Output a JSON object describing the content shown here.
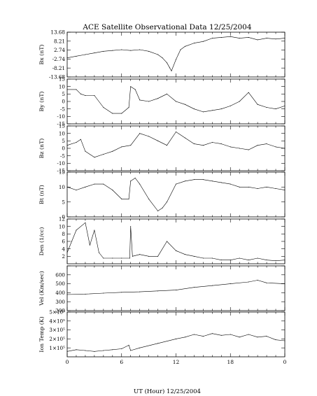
{
  "chart_data": {
    "type": "line",
    "title": "ACE Satellite Observational Data   12/25/2004",
    "xlabel": "UT (Hour)   12/25/2004",
    "x_tick_labels": [
      "0",
      "6",
      "12",
      "18",
      "0"
    ],
    "xlim": [
      0,
      24
    ],
    "panels": [
      {
        "ylabel": "Bx (nT)",
        "ylim": [
          -13.68,
          13.68
        ],
        "y_ticks": [
          -13.68,
          -8.21,
          -2.74,
          2.74,
          8.21,
          13.68
        ],
        "y_tick_labels": [
          "-13.68",
          "-8.21",
          "-2.74",
          "2.74",
          "8.21",
          "13.68"
        ],
        "series": [
          {
            "x": [
              0,
              1,
              2,
              3,
              4,
              5,
              6,
              7,
              8,
              9,
              10,
              10.5,
              11,
              11.3,
              11.5,
              12,
              12.5,
              13,
              14,
              15,
              16,
              17,
              18,
              19,
              20,
              21,
              22,
              23,
              24
            ],
            "values": [
              -2,
              -1,
              0,
              1,
              2,
              2.5,
              3,
              2.5,
              3,
              2,
              0,
              -2,
              -5,
              -8,
              -10,
              -3,
              3,
              5,
              7,
              8,
              10,
              10.5,
              11,
              10,
              10.5,
              9,
              10,
              9.5,
              10
            ]
          }
        ]
      },
      {
        "ylabel": "By (nT)",
        "ylim": [
          -15,
          15
        ],
        "y_ticks": [
          -15,
          -10,
          -5,
          0,
          5,
          10,
          15
        ],
        "y_tick_labels": [
          "-15",
          "-10",
          "-5",
          "0",
          "5",
          "10",
          "15"
        ],
        "series": [
          {
            "x": [
              0,
              1,
              1.5,
              2,
              3,
              4,
              5,
              6,
              6.8,
              7,
              7.5,
              8,
              9,
              10,
              11,
              12,
              13,
              14,
              15,
              16,
              17,
              18,
              19,
              20,
              21,
              22,
              23,
              24
            ],
            "values": [
              8,
              8,
              5,
              4,
              4,
              -4,
              -8,
              -8,
              -4,
              10,
              8,
              1,
              0,
              2,
              5,
              0,
              -2,
              -5,
              -7,
              -6,
              -5,
              -3,
              0,
              6,
              -2,
              -4,
              -5,
              -3
            ]
          }
        ]
      },
      {
        "ylabel": "Bz (nT)",
        "ylim": [
          -15,
          15
        ],
        "y_ticks": [
          -15,
          -10,
          -5,
          0,
          5,
          10,
          15
        ],
        "y_tick_labels": [
          "-15",
          "-10",
          "-5",
          "0",
          "5",
          "10",
          "15"
        ],
        "series": [
          {
            "x": [
              0,
              1,
              1.5,
              2,
              3,
              4,
              5,
              6,
              7,
              8,
              9,
              10,
              11,
              12,
              13,
              14,
              15,
              16,
              17,
              18,
              19,
              20,
              21,
              22,
              23,
              24
            ],
            "values": [
              2,
              4,
              6,
              -2,
              -6,
              -4,
              -2,
              1,
              2,
              10,
              8,
              5,
              2,
              11,
              7,
              3,
              2,
              4,
              3,
              1,
              0,
              -1,
              2,
              3,
              1,
              0
            ]
          }
        ]
      },
      {
        "ylabel": "Bt (nT)",
        "ylim": [
          0,
          15
        ],
        "y_ticks": [
          0,
          5,
          10,
          15
        ],
        "y_tick_labels": [
          "0",
          "5",
          "10",
          "15"
        ],
        "series": [
          {
            "x": [
              0,
              1,
              2,
              3,
              4,
              5,
              6,
              6.8,
              7,
              7.5,
              8,
              9,
              10,
              10.5,
              11,
              12,
              13,
              14,
              15,
              16,
              17,
              18,
              19,
              20,
              21,
              22,
              23,
              24
            ],
            "values": [
              10,
              9,
              10,
              11,
              11,
              9,
              6,
              6,
              12,
              13,
              11,
              6,
              2,
              3,
              5,
              11,
              12,
              12.5,
              12.5,
              12,
              11.5,
              11,
              10,
              10,
              9.5,
              10,
              9.5,
              9
            ]
          }
        ]
      },
      {
        "ylabel": "Den (1/cc)",
        "ylim": [
          0,
          12
        ],
        "y_ticks": [
          2,
          4,
          6,
          8,
          10,
          12
        ],
        "y_tick_labels": [
          "2",
          "4",
          "6",
          "8",
          "10",
          "12"
        ],
        "series": [
          {
            "x": [
              0,
              0.5,
              1,
              2,
              2.5,
              3,
              3.5,
              4,
              5,
              6,
              6.9,
              7,
              7.2,
              8,
              9,
              10,
              11,
              12,
              13,
              14,
              15,
              16,
              17,
              18,
              19,
              20,
              21,
              22,
              23,
              24
            ],
            "values": [
              3,
              6,
              9,
              11,
              5,
              9,
              3,
              1.5,
              1.5,
              1.5,
              1.5,
              10,
              2,
              2.5,
              2,
              2,
              6,
              3.5,
              2.5,
              2,
              1.5,
              1.5,
              1,
              1,
              1.5,
              1,
              1.5,
              1,
              0.8,
              1
            ]
          }
        ]
      },
      {
        "ylabel": "Vel (Km/sec)",
        "ylim": [
          200,
          700
        ],
        "y_ticks": [
          200,
          300,
          400,
          500,
          600,
          700
        ],
        "y_tick_labels": [
          "200",
          "300",
          "400",
          "500",
          "600",
          ""
        ],
        "series": [
          {
            "x": [
              0,
              2,
              4,
              6,
              8,
              10,
              12,
              14,
              16,
              18,
              20,
              21,
              22,
              24
            ],
            "values": [
              380,
              385,
              395,
              405,
              410,
              420,
              430,
              460,
              480,
              500,
              520,
              540,
              510,
              500
            ]
          }
        ]
      },
      {
        "ylabel": "Ion Temp (K)",
        "ylim": [
          0,
          500000
        ],
        "y_ticks": [
          100000,
          200000,
          300000,
          400000,
          500000
        ],
        "y_tick_labels": [
          "1×10⁵",
          "2×10⁵",
          "3×10⁵",
          "4×10⁵",
          "5×10⁵"
        ],
        "series": [
          {
            "x": [
              0,
              1,
              2,
              3,
              4,
              5,
              6,
              6.8,
              7,
              8,
              10,
              12,
              13,
              14,
              15,
              16,
              17,
              18,
              19,
              20,
              21,
              22,
              23,
              24
            ],
            "values": [
              60000,
              80000,
              70000,
              60000,
              70000,
              80000,
              90000,
              130000,
              70000,
              100000,
              150000,
              200000,
              220000,
              250000,
              230000,
              260000,
              240000,
              250000,
              220000,
              250000,
              220000,
              230000,
              190000,
              180000
            ]
          }
        ]
      }
    ]
  }
}
